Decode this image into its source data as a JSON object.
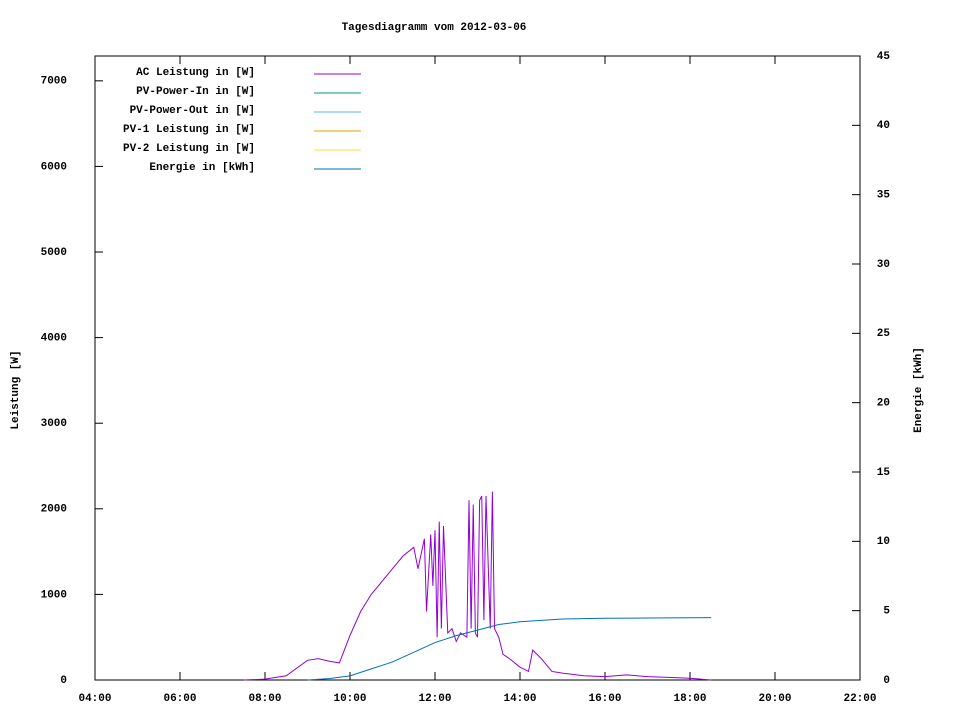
{
  "chart_data": {
    "type": "line",
    "title": "Tagesdiagramm vom 2012-03-06",
    "ylabel": "Leistung [W]",
    "y2label": "Energie [kWh]",
    "xlim": [
      4,
      22
    ],
    "xticks": [
      {
        "value": 4,
        "label": "04:00"
      },
      {
        "value": 6,
        "label": "06:00"
      },
      {
        "value": 8,
        "label": "08:00"
      },
      {
        "value": 10,
        "label": "10:00"
      },
      {
        "value": 12,
        "label": "12:00"
      },
      {
        "value": 14,
        "label": "14:00"
      },
      {
        "value": 16,
        "label": "16:00"
      },
      {
        "value": 18,
        "label": "18:00"
      },
      {
        "value": 20,
        "label": "20:00"
      },
      {
        "value": 22,
        "label": "22:00"
      }
    ],
    "ylim": [
      0,
      7290
    ],
    "yticks": [
      0,
      1000,
      2000,
      3000,
      4000,
      5000,
      6000,
      7000
    ],
    "y2lim": [
      0,
      45
    ],
    "y2ticks": [
      0,
      5,
      10,
      15,
      20,
      25,
      30,
      35,
      40,
      45
    ],
    "grid": false,
    "legend": "top-left",
    "series": [
      {
        "name": "AC Leistung in [W]",
        "color": "#9400d3",
        "x": [
          7.5,
          8.0,
          8.5,
          9.0,
          9.25,
          9.5,
          9.75,
          10.0,
          10.25,
          10.5,
          10.75,
          11.0,
          11.25,
          11.5,
          11.6,
          11.75,
          11.8,
          11.9,
          11.95,
          12.0,
          12.05,
          12.1,
          12.15,
          12.2,
          12.3,
          12.4,
          12.5,
          12.6,
          12.75,
          12.8,
          12.85,
          12.9,
          12.95,
          13.0,
          13.05,
          13.1,
          13.15,
          13.2,
          13.3,
          13.35,
          13.4,
          13.5,
          13.6,
          13.75,
          14.0,
          14.2,
          14.3,
          14.5,
          14.75,
          15.0,
          15.5,
          16.0,
          16.5,
          17.0,
          17.5,
          18.0,
          18.5
        ],
        "values": [
          0,
          10,
          50,
          230,
          250,
          220,
          200,
          520,
          800,
          1000,
          1150,
          1300,
          1450,
          1550,
          1300,
          1650,
          800,
          1700,
          1100,
          1750,
          500,
          1850,
          600,
          1800,
          550,
          600,
          450,
          550,
          500,
          2100,
          600,
          2050,
          550,
          500,
          2100,
          2150,
          700,
          2150,
          600,
          2200,
          600,
          500,
          300,
          250,
          150,
          100,
          350,
          250,
          100,
          80,
          50,
          40,
          60,
          40,
          30,
          20,
          0
        ]
      },
      {
        "name": "PV-Power-In in [W]",
        "color": "#009e73",
        "x": [],
        "values": []
      },
      {
        "name": "PV-Power-Out in [W]",
        "color": "#56b4e9",
        "x": [],
        "values": []
      },
      {
        "name": "PV-1 Leistung in [W]",
        "color": "#e69f00",
        "x": [],
        "values": []
      },
      {
        "name": "PV-2 Leistung in [W]",
        "color": "#f0e442",
        "x": [],
        "values": []
      },
      {
        "name": "Energie in [kWh]",
        "color": "#0072b2",
        "axis": "y2",
        "x": [
          9.0,
          9.5,
          10.0,
          10.5,
          11.0,
          11.5,
          12.0,
          12.5,
          13.0,
          13.5,
          14.0,
          14.5,
          15.0,
          16.0,
          17.0,
          18.5
        ],
        "values": [
          0,
          0.1,
          0.3,
          0.8,
          1.3,
          2.0,
          2.7,
          3.2,
          3.6,
          4.0,
          4.2,
          4.3,
          4.4,
          4.45,
          4.47,
          4.5
        ]
      }
    ]
  }
}
